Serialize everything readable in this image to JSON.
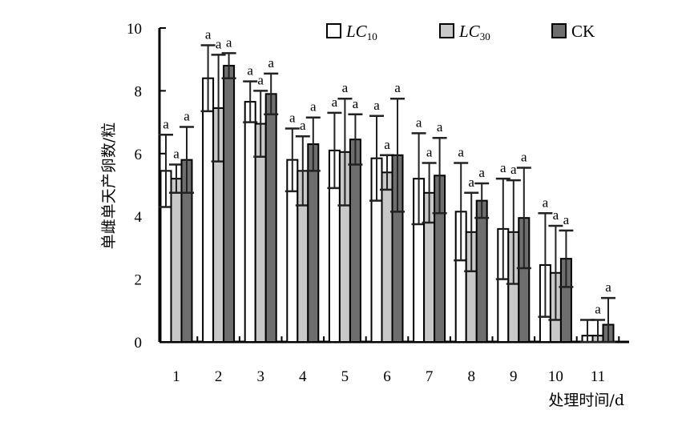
{
  "chart_data": {
    "type": "bar",
    "title": "",
    "xlabel": "处理时间/d",
    "ylabel": "单雌单天产卵数/粒",
    "ylim": [
      0,
      10
    ],
    "yticks": [
      "0",
      "2",
      "4",
      "6",
      "8",
      "10"
    ],
    "categories": [
      "1",
      "2",
      "3",
      "4",
      "5",
      "6",
      "7",
      "8",
      "9",
      "10",
      "11"
    ],
    "legend_position": "top",
    "series": [
      {
        "name": "LC10",
        "name_main": "LC",
        "name_sub": "10",
        "color": "#ffffff",
        "values": [
          5.45,
          8.4,
          7.65,
          5.8,
          6.1,
          5.85,
          5.2,
          4.15,
          3.6,
          2.45,
          0.2
        ],
        "errors": [
          1.15,
          1.05,
          0.65,
          1.0,
          1.2,
          1.35,
          1.45,
          1.55,
          1.6,
          1.65,
          0.5
        ],
        "sig": [
          "a",
          "a",
          "a",
          "a",
          "a",
          "a",
          "a",
          "a",
          "a",
          "a",
          ""
        ]
      },
      {
        "name": "LC30",
        "name_main": "LC",
        "name_sub": "30",
        "color": "#c8c8c8",
        "values": [
          5.2,
          7.45,
          6.95,
          5.45,
          6.05,
          5.4,
          4.75,
          3.5,
          3.5,
          2.2,
          0.2
        ],
        "errors": [
          0.45,
          1.7,
          1.05,
          1.1,
          1.7,
          0.55,
          0.95,
          1.25,
          1.65,
          1.5,
          0.5
        ],
        "sig": [
          "a",
          "a",
          "a",
          "a",
          "a",
          "a",
          "a",
          "a",
          "a",
          "a",
          "a"
        ]
      },
      {
        "name": "CK",
        "color": "#6e6e6e",
        "values": [
          5.8,
          8.8,
          7.9,
          6.3,
          6.45,
          5.95,
          5.3,
          4.5,
          3.95,
          2.65,
          0.55
        ],
        "errors": [
          1.05,
          0.4,
          0.65,
          0.85,
          0.8,
          1.8,
          1.2,
          0.55,
          1.6,
          0.9,
          0.85
        ],
        "sig": [
          "a",
          "a",
          "a",
          "a",
          "a",
          "a",
          "a",
          "a",
          "a",
          "a",
          "a"
        ]
      }
    ]
  }
}
